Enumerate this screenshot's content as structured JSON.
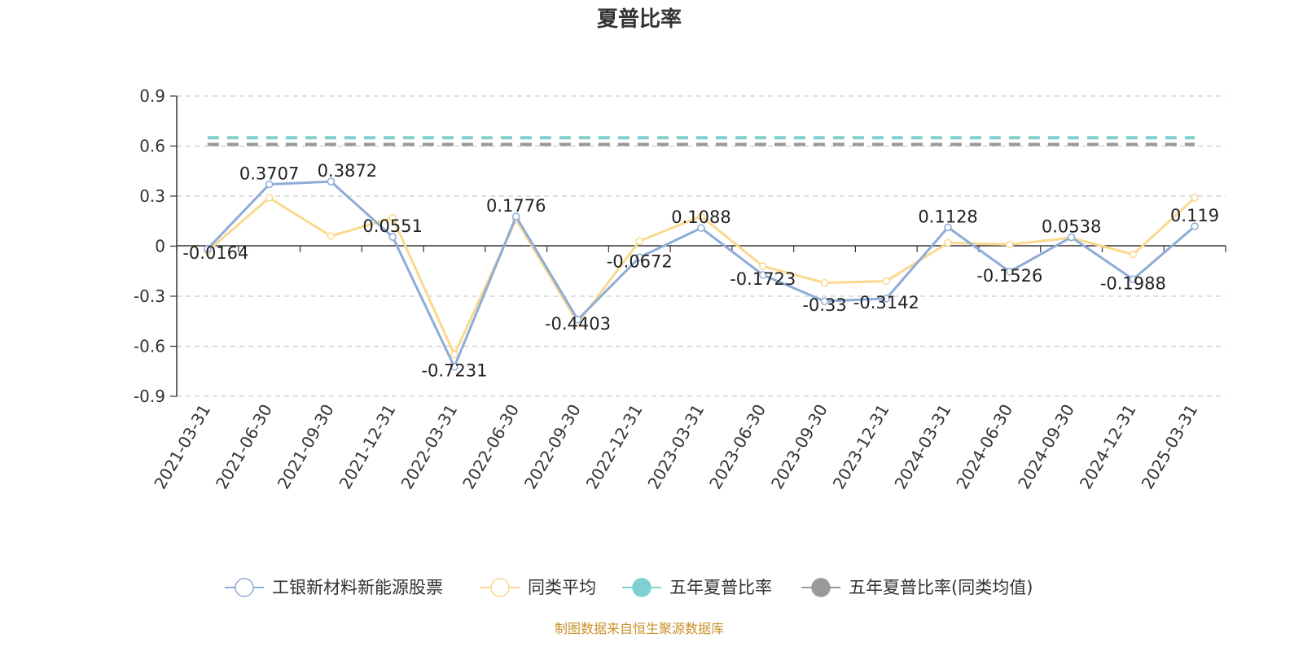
{
  "chart_data": {
    "type": "line",
    "title": "夏普比率",
    "categories": [
      "2021-03-31",
      "2021-06-30",
      "2021-09-30",
      "2021-12-31",
      "2022-03-31",
      "2022-06-30",
      "2022-09-30",
      "2022-12-31",
      "2023-03-31",
      "2023-06-30",
      "2023-09-30",
      "2023-12-31",
      "2024-03-31",
      "2024-06-30",
      "2024-09-30",
      "2024-12-31",
      "2025-03-31"
    ],
    "ylim": [
      -0.9,
      0.9
    ],
    "yticks": [
      0.9,
      0.6,
      0.3,
      0,
      -0.3,
      -0.6,
      -0.9
    ],
    "ytick_labels": [
      "0.9",
      "0.6",
      "0.3",
      "0",
      "-0.3",
      "-0.6",
      "-0.9"
    ],
    "grid": true,
    "legend_position": "bottom",
    "series": [
      {
        "name": "工银新材料新能源股票",
        "color": "#8eacd8",
        "values": [
          -0.0164,
          0.3707,
          0.3872,
          0.0551,
          -0.7231,
          0.1776,
          -0.4403,
          -0.0672,
          0.1088,
          -0.1723,
          -0.33,
          -0.3142,
          0.1128,
          -0.1526,
          0.0538,
          -0.1988,
          0.119
        ],
        "labels": [
          "-0.0164",
          "0.3707",
          "0.3872",
          "0.0551",
          "-0.7231",
          "0.1776",
          "-0.4403",
          "-0.0672",
          "0.1088",
          "-0.1723",
          "-0.33",
          "-0.3142",
          "0.1128",
          "-0.1526",
          "0.0538",
          "-0.1988",
          "0.119"
        ]
      },
      {
        "name": "同类平均",
        "color": "#fad98f",
        "values": [
          -0.03,
          0.29,
          0.06,
          0.17,
          -0.65,
          0.16,
          -0.46,
          0.03,
          0.18,
          -0.12,
          -0.22,
          -0.21,
          0.02,
          0.01,
          0.05,
          -0.05,
          0.29
        ]
      },
      {
        "name": "五年夏普比率",
        "color": "#7fd1d1",
        "type": "constant",
        "value": 0.65
      },
      {
        "name": "五年夏普比率(同类均值)",
        "color": "#999999",
        "type": "constant",
        "value": 0.61
      }
    ],
    "source": "制图数据来自恒生聚源数据库"
  }
}
